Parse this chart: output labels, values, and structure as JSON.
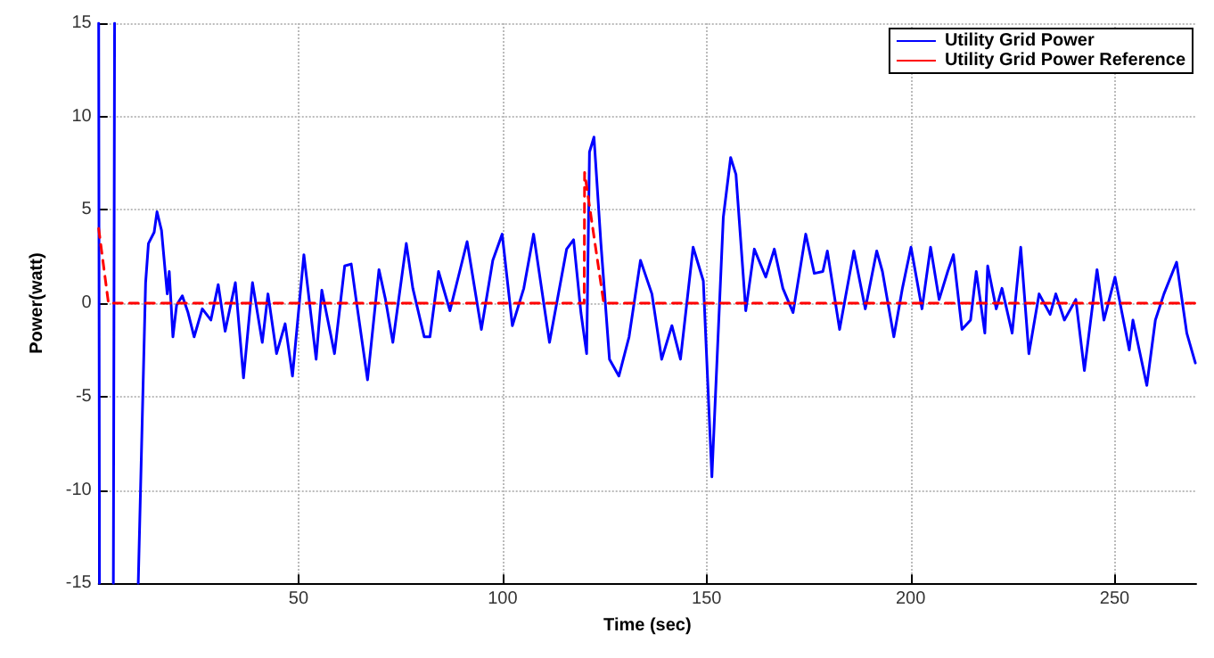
{
  "chart_data": {
    "type": "line",
    "xlabel": "Time (sec)",
    "ylabel": "Power(watt)",
    "xlim": [
      1,
      270
    ],
    "ylim": [
      -15,
      15
    ],
    "xticks": [
      50,
      100,
      150,
      200,
      250
    ],
    "yticks": [
      -15,
      -10,
      -5,
      0,
      5,
      10,
      15
    ],
    "grid": true,
    "legend": "top right",
    "marker": "none",
    "series": [
      {
        "name": "Utility Grid Power",
        "color": "#0000ff",
        "line_style": "solid",
        "x": [
          1,
          1.2,
          2,
          4.6,
          4.9,
          6,
          10.7,
          12.5,
          13.2,
          14.6,
          15.3,
          16.4,
          17.8,
          18.3,
          19.2,
          20.1,
          21.5,
          22.9,
          24.4,
          26.4,
          28.5,
          30.3,
          32.0,
          34.5,
          36.5,
          38.7,
          41.1,
          42.5,
          44.6,
          46.7,
          48.5,
          51.3,
          54.3,
          55.7,
          58.8,
          61.3,
          62.9,
          64.1,
          66.9,
          69.7,
          71.3,
          73.1,
          76.4,
          78.0,
          80.8,
          82.2,
          84.3,
          87.1,
          91.3,
          94.8,
          97.6,
          99.9,
          102.4,
          105.2,
          107.6,
          111.5,
          115.7,
          117.4,
          119.2,
          120.6,
          121.3,
          122.4,
          124.1,
          126.2,
          128.5,
          131.0,
          133.8,
          136.6,
          139.0,
          141.5,
          143.6,
          146.7,
          149.2,
          151.3,
          154.1,
          155.9,
          157.2,
          159.6,
          161.7,
          164.5,
          166.6,
          168.7,
          171.2,
          174.3,
          176.4,
          178.5,
          179.6,
          182.6,
          186.1,
          188.9,
          191.7,
          193.1,
          195.9,
          198.0,
          200.1,
          202.8,
          204.9,
          207.0,
          209.1,
          210.5,
          212.6,
          214.7,
          216.1,
          218.2,
          218.9,
          221.0,
          222.4,
          224.9,
          227.0,
          229.0,
          231.5,
          234.2,
          235.6,
          237.7,
          240.5,
          242.6,
          245.7,
          247.4,
          250.1,
          253.6,
          254.5,
          257.9,
          260.0,
          262.1,
          265.2,
          267.7,
          269.8
        ],
        "values": [
          15,
          -15,
          null,
          -15,
          15,
          null,
          -15,
          1.1,
          3.2,
          3.8,
          4.9,
          3.9,
          0.5,
          1.7,
          -1.8,
          -0.1,
          0.4,
          -0.5,
          -1.8,
          -0.3,
          -0.9,
          1.0,
          -1.5,
          1.1,
          -4.0,
          1.1,
          -2.1,
          0.5,
          -2.7,
          -1.1,
          -3.9,
          2.6,
          -3.0,
          0.7,
          -2.7,
          2.0,
          2.1,
          0.2,
          -4.1,
          1.8,
          0.2,
          -2.1,
          3.2,
          0.8,
          -1.8,
          -1.8,
          1.7,
          -0.4,
          3.3,
          -1.4,
          2.3,
          3.7,
          -1.2,
          0.8,
          3.7,
          -2.1,
          2.9,
          3.4,
          -0.5,
          -2.7,
          8.1,
          8.9,
          3.2,
          -3.0,
          -3.9,
          -1.8,
          2.3,
          0.5,
          -3.0,
          -1.2,
          -3.0,
          3.0,
          1.2,
          -9.3,
          4.6,
          7.8,
          6.9,
          -0.4,
          2.9,
          1.4,
          2.9,
          0.8,
          -0.5,
          3.7,
          1.6,
          1.7,
          2.8,
          -1.4,
          2.8,
          -0.3,
          2.8,
          1.7,
          -1.8,
          0.8,
          3.0,
          -0.3,
          3.0,
          0.2,
          1.7,
          2.6,
          -1.4,
          -0.9,
          1.7,
          -1.6,
          2.0,
          -0.3,
          0.8,
          -1.6,
          3.0,
          -2.7,
          0.5,
          -0.6,
          0.5,
          -0.9,
          0.2,
          -3.6,
          1.8,
          -0.9,
          1.4,
          -2.5,
          -0.9,
          -4.4,
          -0.9,
          0.5,
          2.2,
          -1.6,
          -3.2
        ]
      },
      {
        "name": "Utility Grid Power Reference",
        "color": "#ff0000",
        "line_style": "dashed",
        "x": [
          1,
          3.4,
          120,
          120.1,
          124.8,
          270
        ],
        "values": [
          4.0,
          0,
          0,
          7.0,
          0,
          0
        ]
      }
    ]
  }
}
